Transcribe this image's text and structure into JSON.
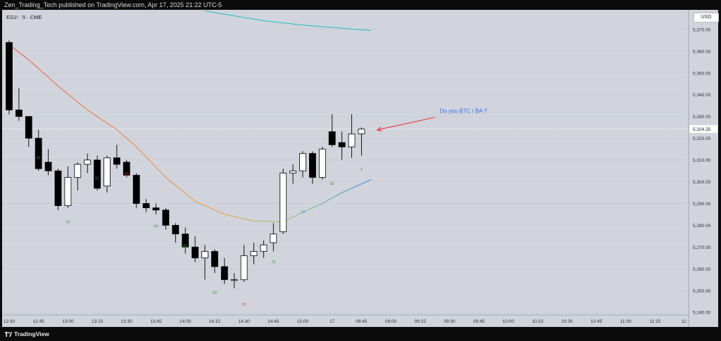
{
  "header": {
    "published_line": "Zen_Trading_Tech published on TradingView.com, Apr 17, 2025 21:22 UTC-5"
  },
  "chart_header": {
    "symbol_line": "ES1! · 5 · CME",
    "currency_button": "USD"
  },
  "footer": {
    "brand": "TradingView"
  },
  "chart_data": {
    "type": "candlestick",
    "series_colors": {
      "up_body": "#ffffff",
      "down_body": "#000000",
      "wick": "#000000",
      "background": "#d1d4dc",
      "gridline": "#c6c9d1"
    },
    "ylim": [
      5240,
      5379
    ],
    "y_ticks": [
      5240,
      5250,
      5260,
      5270,
      5280,
      5290,
      5300,
      5310,
      5320,
      5330,
      5340,
      5350,
      5360,
      5370
    ],
    "y_tick_labels": [
      "5,240.00",
      "5,250.00",
      "5,260.00",
      "5,270.00",
      "5,280.00",
      "5,290.00",
      "5,300.00",
      "5,310.00",
      "5,320.00",
      "5,330.00",
      "5,340.00",
      "5,350.00",
      "5,360.00",
      "5,370.00"
    ],
    "x_ticks": [
      {
        "label": "12:30",
        "bar": 0
      },
      {
        "label": "12:45",
        "bar": 3
      },
      {
        "label": "13:00",
        "bar": 6
      },
      {
        "label": "13:15",
        "bar": 9
      },
      {
        "label": "13:30",
        "bar": 12
      },
      {
        "label": "13:45",
        "bar": 15
      },
      {
        "label": "14:00",
        "bar": 18
      },
      {
        "label": "14:15",
        "bar": 21
      },
      {
        "label": "14:30",
        "bar": 24
      },
      {
        "label": "14:45",
        "bar": 27
      },
      {
        "label": "15:00",
        "bar": 30
      },
      {
        "label": "17",
        "bar": 33
      },
      {
        "label": "08:45",
        "bar": 36
      },
      {
        "label": "09:00",
        "bar": 39
      },
      {
        "label": "09:15",
        "bar": 42
      },
      {
        "label": "09:30",
        "bar": 45
      },
      {
        "label": "09:45",
        "bar": 48
      },
      {
        "label": "10:00",
        "bar": 51
      },
      {
        "label": "10:15",
        "bar": 54
      },
      {
        "label": "10:30",
        "bar": 57
      },
      {
        "label": "10:45",
        "bar": 60
      },
      {
        "label": "11:00",
        "bar": 63
      },
      {
        "label": "11:15",
        "bar": 66
      },
      {
        "label": "11:",
        "bar": 69
      }
    ],
    "last_price": 5324.25,
    "last_price_label": "5,324.25",
    "candles": [
      {
        "o": 5364,
        "h": 5365,
        "l": 5331,
        "c": 5333
      },
      {
        "o": 5333,
        "h": 5343,
        "l": 5328,
        "c": 5330
      },
      {
        "o": 5330,
        "h": 5330,
        "l": 5316,
        "c": 5320
      },
      {
        "o": 5320,
        "h": 5324,
        "l": 5305,
        "c": 5306
      },
      {
        "o": 5309,
        "h": 5315,
        "l": 5303,
        "c": 5305
      },
      {
        "o": 5305,
        "h": 5306,
        "l": 5287,
        "c": 5289
      },
      {
        "o": 5289,
        "h": 5307,
        "l": 5288,
        "c": 5302
      },
      {
        "o": 5302,
        "h": 5309,
        "l": 5296,
        "c": 5308
      },
      {
        "o": 5308,
        "h": 5313,
        "l": 5304,
        "c": 5310
      },
      {
        "o": 5310,
        "h": 5312,
        "l": 5296,
        "c": 5297
      },
      {
        "o": 5298,
        "h": 5312,
        "l": 5295,
        "c": 5311
      },
      {
        "o": 5311,
        "h": 5317,
        "l": 5306,
        "c": 5308
      },
      {
        "o": 5309,
        "h": 5310,
        "l": 5302,
        "c": 5303
      },
      {
        "o": 5303,
        "h": 5304,
        "l": 5288,
        "c": 5290
      },
      {
        "o": 5290,
        "h": 5292,
        "l": 5286,
        "c": 5288
      },
      {
        "o": 5288,
        "h": 5290,
        "l": 5285,
        "c": 5287
      },
      {
        "o": 5287,
        "h": 5288,
        "l": 5278,
        "c": 5280
      },
      {
        "o": 5280,
        "h": 5281,
        "l": 5272,
        "c": 5276
      },
      {
        "o": 5276,
        "h": 5279,
        "l": 5267,
        "c": 5270
      },
      {
        "o": 5270,
        "h": 5275,
        "l": 5263,
        "c": 5265
      },
      {
        "o": 5265,
        "h": 5271,
        "l": 5255,
        "c": 5268
      },
      {
        "o": 5268,
        "h": 5269,
        "l": 5258,
        "c": 5261
      },
      {
        "o": 5261,
        "h": 5265,
        "l": 5253,
        "c": 5255
      },
      {
        "o": 5255,
        "h": 5258,
        "l": 5251,
        "c": 5255
      },
      {
        "o": 5255,
        "h": 5271,
        "l": 5254,
        "c": 5266
      },
      {
        "o": 5266,
        "h": 5272,
        "l": 5262,
        "c": 5268
      },
      {
        "o": 5268,
        "h": 5273,
        "l": 5265,
        "c": 5271
      },
      {
        "o": 5272,
        "h": 5281,
        "l": 5268,
        "c": 5276
      },
      {
        "o": 5277,
        "h": 5306,
        "l": 5276,
        "c": 5304
      },
      {
        "o": 5304,
        "h": 5308,
        "l": 5299,
        "c": 5305
      },
      {
        "o": 5305,
        "h": 5314,
        "l": 5302,
        "c": 5313
      },
      {
        "o": 5313,
        "h": 5314,
        "l": 5299,
        "c": 5302
      },
      {
        "o": 5302,
        "h": 5316,
        "l": 5301,
        "c": 5315
      },
      {
        "o": 5323,
        "h": 5331,
        "l": 5316,
        "c": 5317
      },
      {
        "o": 5318,
        "h": 5323,
        "l": 5310,
        "c": 5316
      },
      {
        "o": 5316,
        "h": 5331,
        "l": 5311,
        "c": 5322
      },
      {
        "o": 5322,
        "h": 5325,
        "l": 5312,
        "c": 5324.25
      }
    ],
    "bar_number_labels": [
      {
        "text": "51",
        "bar": 3,
        "price": 5310.5,
        "color": "#3a9b3a"
      },
      {
        "text": "54",
        "bar": 6,
        "price": 5281,
        "color": "#3a9b3a"
      },
      {
        "text": "57",
        "bar": 9,
        "price": 5301,
        "color": "#3a9b3a"
      },
      {
        "text": "60",
        "bar": 12,
        "price": 5303,
        "color": "#e03030"
      },
      {
        "text": "63",
        "bar": 15,
        "price": 5279,
        "color": "#3a9b3a"
      },
      {
        "text": "66",
        "bar": 18,
        "price": 5270,
        "color": "#3a9b3a"
      },
      {
        "text": "69",
        "bar": 21,
        "price": 5248.5,
        "color": "#3a9b3a"
      },
      {
        "text": "72",
        "bar": 24,
        "price": 5243,
        "color": "#e03030"
      },
      {
        "text": "75",
        "bar": 27,
        "price": 5262.5,
        "color": "#3a9b3a"
      },
      {
        "text": "78",
        "bar": 30,
        "price": 5285.5,
        "color": "#4a8fd8"
      },
      {
        "text": "81",
        "bar": 33,
        "price": 5298.5,
        "color": "#3a9b3a"
      },
      {
        "text": "3",
        "bar": 36,
        "price": 5305,
        "color": "#3a9b3a"
      }
    ],
    "moving_averages": [
      {
        "color": "#26b9c8",
        "points": [
          [
            20,
            5378.5
          ],
          [
            26,
            5374
          ],
          [
            30,
            5372
          ],
          [
            34,
            5370.5
          ],
          [
            37,
            5369.5
          ]
        ]
      },
      {
        "color_stops": [
          "#f04e4e",
          "#f07c3a",
          "#e8a23a",
          "#7ec77e",
          "#2f7de8"
        ],
        "points": [
          [
            0,
            5363
          ],
          [
            2,
            5356
          ],
          [
            5,
            5344
          ],
          [
            8,
            5333
          ],
          [
            11,
            5324
          ],
          [
            13,
            5316
          ],
          [
            16,
            5302
          ],
          [
            19,
            5291
          ],
          [
            22,
            5285
          ],
          [
            25,
            5282
          ],
          [
            28,
            5281.5
          ],
          [
            30,
            5286
          ],
          [
            32,
            5290
          ],
          [
            34,
            5295
          ],
          [
            36,
            5299
          ],
          [
            37,
            5301
          ]
        ]
      }
    ],
    "annotation": {
      "text": "Do you BTC / BA ?",
      "text_color": "#2f6fe6",
      "arrow_color": "#e8353f",
      "arrow_from": {
        "bar": 43.5,
        "price": 5329.6
      },
      "arrow_to": {
        "bar": 37.6,
        "price": 5323.8
      }
    }
  }
}
